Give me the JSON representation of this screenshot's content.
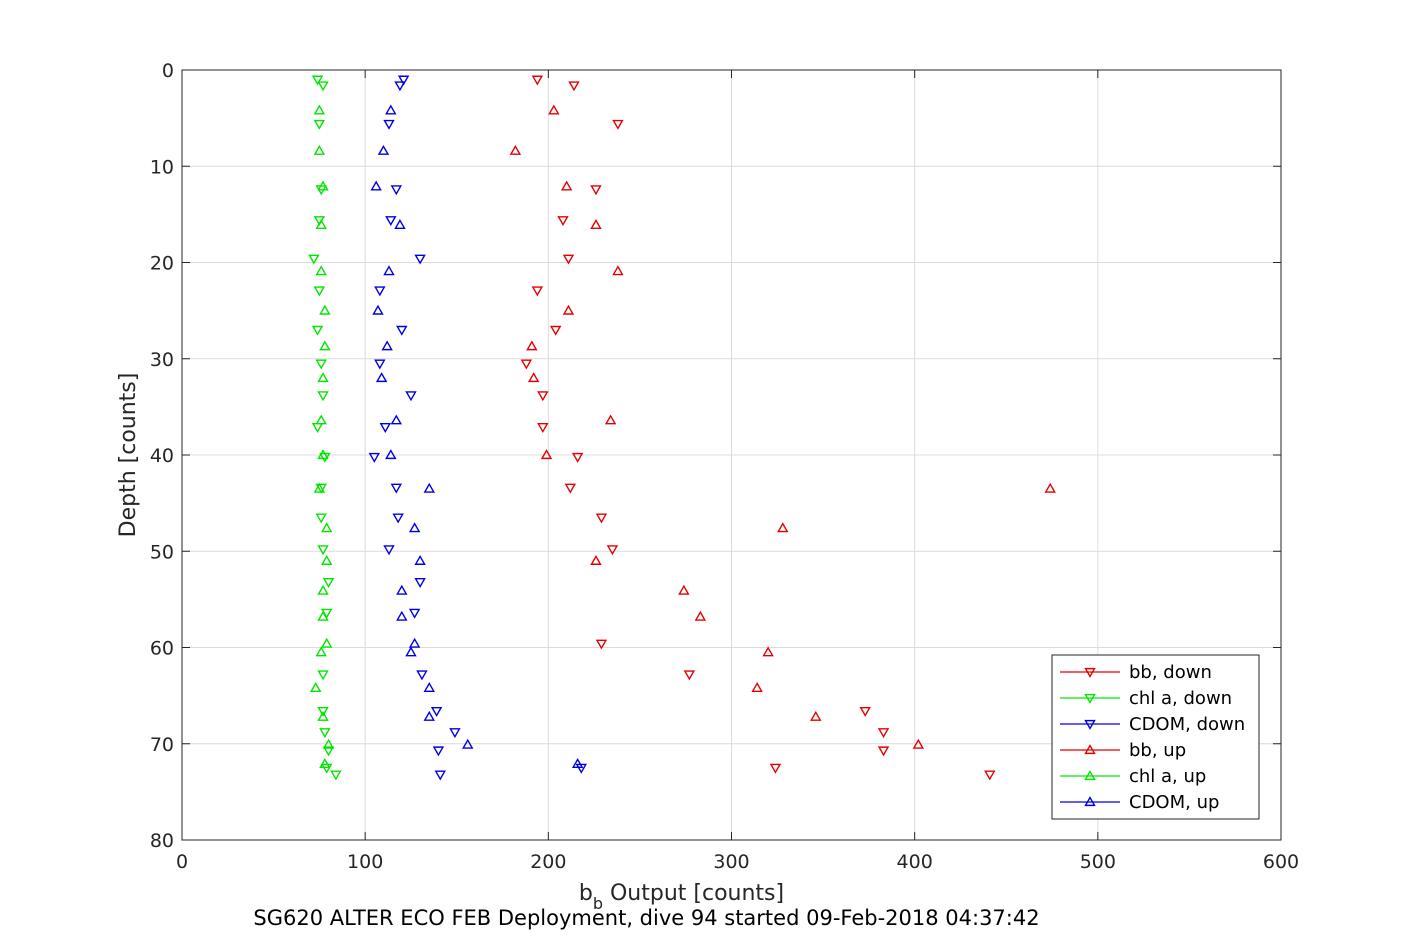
{
  "chart_data": {
    "type": "scatter",
    "caption": "SG620 ALTER ECO FEB Deployment, dive 94 started 09-Feb-2018 04:37:42",
    "xlabel_main": "b",
    "xlabel_sub": "b",
    "xlabel_rest": " Output [counts]",
    "ylabel": "Depth [counts]",
    "xlim": [
      0,
      600
    ],
    "ylim": [
      0,
      80
    ],
    "y_reversed": true,
    "grid": true,
    "legend_position": "bottom-right",
    "xticks": [
      "0",
      "100",
      "200",
      "300",
      "400",
      "500",
      "600"
    ],
    "yticks": [
      "0",
      "10",
      "20",
      "30",
      "40",
      "50",
      "60",
      "70",
      "80"
    ],
    "series": [
      {
        "name": "bb, down",
        "color": "#e60000",
        "marker": "triangle-down",
        "points": [
          [
            194,
            1.0
          ],
          [
            214,
            1.6
          ],
          [
            238,
            5.6
          ],
          [
            226,
            12.4
          ],
          [
            208,
            15.6
          ],
          [
            211,
            19.6
          ],
          [
            194,
            22.9
          ],
          [
            204,
            27.0
          ],
          [
            188,
            30.5
          ],
          [
            197,
            33.8
          ],
          [
            197,
            37.1
          ],
          [
            216,
            40.2
          ],
          [
            212,
            43.4
          ],
          [
            229,
            46.5
          ],
          [
            235,
            49.8
          ],
          [
            229,
            59.6
          ],
          [
            277,
            62.8
          ],
          [
            373,
            66.6
          ],
          [
            383,
            68.8
          ],
          [
            383,
            70.7
          ],
          [
            324,
            72.5
          ],
          [
            441,
            73.2
          ]
        ]
      },
      {
        "name": "chl a, down",
        "color": "#00e600",
        "marker": "triangle-down",
        "points": [
          [
            74,
            1.0
          ],
          [
            77,
            1.6
          ],
          [
            75,
            5.6
          ],
          [
            76,
            12.4
          ],
          [
            75,
            15.6
          ],
          [
            72,
            19.6
          ],
          [
            75,
            22.9
          ],
          [
            74,
            27.0
          ],
          [
            76,
            30.5
          ],
          [
            77,
            33.8
          ],
          [
            74,
            37.1
          ],
          [
            78,
            40.2
          ],
          [
            76,
            43.4
          ],
          [
            76,
            46.5
          ],
          [
            77,
            49.8
          ],
          [
            80,
            53.2
          ],
          [
            79,
            56.4
          ],
          [
            77,
            62.8
          ],
          [
            77,
            66.6
          ],
          [
            78,
            68.8
          ],
          [
            80,
            70.7
          ],
          [
            79,
            72.5
          ],
          [
            84,
            73.2
          ]
        ]
      },
      {
        "name": "CDOM, down",
        "color": "#0000e6",
        "marker": "triangle-down",
        "points": [
          [
            121,
            1.0
          ],
          [
            119,
            1.6
          ],
          [
            113,
            5.6
          ],
          [
            117,
            12.4
          ],
          [
            114,
            15.6
          ],
          [
            130,
            19.6
          ],
          [
            108,
            22.9
          ],
          [
            120,
            27.0
          ],
          [
            108,
            30.5
          ],
          [
            125,
            33.8
          ],
          [
            111,
            37.1
          ],
          [
            105,
            40.2
          ],
          [
            117,
            43.4
          ],
          [
            118,
            46.5
          ],
          [
            113,
            49.8
          ],
          [
            130,
            53.2
          ],
          [
            127,
            56.4
          ],
          [
            131,
            62.8
          ],
          [
            139,
            66.6
          ],
          [
            149,
            68.8
          ],
          [
            140,
            70.7
          ],
          [
            218,
            72.5
          ],
          [
            141,
            73.2
          ]
        ]
      },
      {
        "name": "bb, up",
        "color": "#e60000",
        "marker": "triangle-up",
        "points": [
          [
            203,
            4.2
          ],
          [
            182,
            8.4
          ],
          [
            210,
            12.1
          ],
          [
            226,
            16.1
          ],
          [
            238,
            20.9
          ],
          [
            211,
            25.0
          ],
          [
            191,
            28.7
          ],
          [
            192,
            32.0
          ],
          [
            234,
            36.4
          ],
          [
            199,
            40.0
          ],
          [
            474,
            43.5
          ],
          [
            328,
            47.6
          ],
          [
            226,
            51.0
          ],
          [
            274,
            54.1
          ],
          [
            283,
            56.8
          ],
          [
            320,
            60.5
          ],
          [
            314,
            64.2
          ],
          [
            346,
            67.2
          ],
          [
            402,
            70.1
          ]
        ]
      },
      {
        "name": "chl a, up",
        "color": "#00e600",
        "marker": "triangle-up",
        "points": [
          [
            75,
            4.2
          ],
          [
            75,
            8.4
          ],
          [
            77,
            12.1
          ],
          [
            76,
            16.1
          ],
          [
            76,
            20.9
          ],
          [
            78,
            25.0
          ],
          [
            78,
            28.7
          ],
          [
            77,
            32.0
          ],
          [
            76,
            36.4
          ],
          [
            77,
            40.0
          ],
          [
            75,
            43.5
          ],
          [
            79,
            47.6
          ],
          [
            79,
            51.0
          ],
          [
            77,
            54.1
          ],
          [
            77,
            56.8
          ],
          [
            79,
            59.6
          ],
          [
            76,
            60.5
          ],
          [
            73,
            64.2
          ],
          [
            77,
            67.2
          ],
          [
            80,
            70.1
          ],
          [
            78,
            72.1
          ]
        ]
      },
      {
        "name": "CDOM, up",
        "color": "#0000e6",
        "marker": "triangle-up",
        "points": [
          [
            114,
            4.2
          ],
          [
            110,
            8.4
          ],
          [
            106,
            12.1
          ],
          [
            119,
            16.1
          ],
          [
            113,
            20.9
          ],
          [
            107,
            25.0
          ],
          [
            112,
            28.7
          ],
          [
            109,
            32.0
          ],
          [
            117,
            36.4
          ],
          [
            114,
            40.0
          ],
          [
            135,
            43.5
          ],
          [
            127,
            47.6
          ],
          [
            130,
            51.0
          ],
          [
            120,
            54.1
          ],
          [
            120,
            56.8
          ],
          [
            127,
            59.6
          ],
          [
            125,
            60.5
          ],
          [
            135,
            64.2
          ],
          [
            135,
            67.2
          ],
          [
            156,
            70.1
          ],
          [
            216,
            72.1
          ]
        ]
      }
    ]
  }
}
